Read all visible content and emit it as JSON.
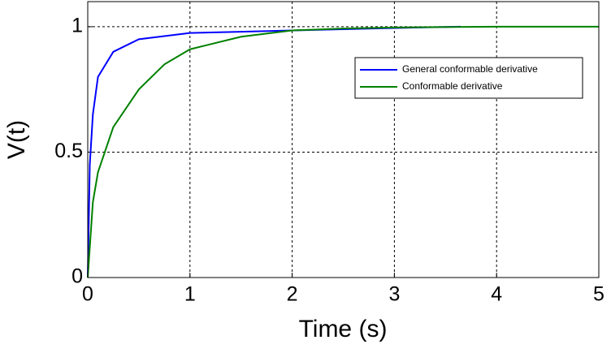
{
  "chart_data": {
    "type": "line",
    "xlabel": "Time (s)",
    "ylabel": "V(t)",
    "xlim": [
      0,
      5
    ],
    "ylim": [
      0,
      1.1
    ],
    "xticks": [
      0,
      1,
      2,
      3,
      4,
      5
    ],
    "yticks": [
      0,
      0.5,
      1
    ],
    "grid": true,
    "legend": "northeast",
    "series": [
      {
        "name": "General conformable derivative",
        "color": "#0000ff",
        "x": [
          0,
          0.02,
          0.05,
          0.1,
          0.25,
          0.5,
          1,
          1.5,
          2,
          2.5,
          3,
          3.65
        ],
        "values": [
          0,
          0.45,
          0.65,
          0.8,
          0.9,
          0.95,
          0.975,
          0.98,
          0.985,
          0.99,
          0.995,
          1
        ]
      },
      {
        "name": "Conformable derivative",
        "color": "#008000",
        "x": [
          0,
          0.05,
          0.1,
          0.25,
          0.5,
          0.75,
          1,
          1.5,
          2,
          2.5,
          3,
          4,
          5
        ],
        "values": [
          0,
          0.3,
          0.42,
          0.6,
          0.75,
          0.85,
          0.91,
          0.96,
          0.985,
          0.993,
          0.997,
          1,
          1
        ]
      }
    ]
  }
}
